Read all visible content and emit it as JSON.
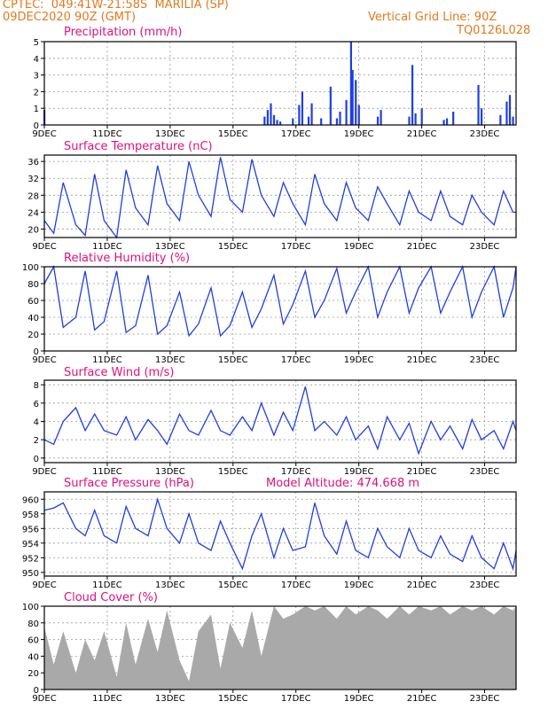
{
  "header": {
    "line1_left": "CPTEC:  049:41W-21:58S  MARILIA (SP)",
    "line2_left": "09DEC2020 90Z (GMT)",
    "line1_right": "Vertical Grid Line: 90Z",
    "line2_right": "TQ0126L028",
    "title_color": "#e07a1e",
    "panel_title_color": "#e0107a",
    "line_color": "#1f3fe0",
    "fill_color": "#a9a9a9"
  },
  "x_ticks": [
    "9DEC",
    "11DEC",
    "13DEC",
    "15DEC",
    "17DEC",
    "19DEC",
    "21DEC",
    "23DEC"
  ],
  "x_tick_days": [
    9,
    11,
    13,
    15,
    17,
    19,
    21,
    23
  ],
  "x_range_days": [
    9,
    24
  ],
  "chart_data": [
    {
      "type": "bar",
      "title": "Precipitation (mm/h)",
      "ylim": [
        0,
        5
      ],
      "yticks": [
        0,
        1,
        2,
        3,
        4,
        5
      ],
      "x_days": [
        9.0,
        16.0,
        16.1,
        16.2,
        16.3,
        16.4,
        16.5,
        16.9,
        17.1,
        17.2,
        17.4,
        17.5,
        17.8,
        18.1,
        18.3,
        18.4,
        18.6,
        18.75,
        18.8,
        18.9,
        19.0,
        19.6,
        19.7,
        20.6,
        20.7,
        20.8,
        21.0,
        21.7,
        21.8,
        22.0,
        22.8,
        22.9,
        23.5,
        23.7,
        23.8,
        23.9
      ],
      "values": [
        0.9,
        0.5,
        0.9,
        1.3,
        0.6,
        0.3,
        0.2,
        0.4,
        1.2,
        2.0,
        0.5,
        1.3,
        0.4,
        2.3,
        0.4,
        0.8,
        1.5,
        5.0,
        3.3,
        2.7,
        1.2,
        0.5,
        0.9,
        0.5,
        3.6,
        0.7,
        1.0,
        0.3,
        0.4,
        0.8,
        2.4,
        1.0,
        0.6,
        1.4,
        1.8,
        0.5
      ]
    },
    {
      "type": "line",
      "title": "Surface Temperature (nC)",
      "ylim": [
        18,
        37.5
      ],
      "yticks": [
        20,
        24,
        28,
        32,
        36
      ],
      "x_days": [
        9.0,
        9.3,
        9.6,
        10.0,
        10.3,
        10.6,
        10.9,
        11.3,
        11.6,
        11.9,
        12.3,
        12.6,
        12.9,
        13.3,
        13.6,
        13.9,
        14.3,
        14.6,
        14.9,
        15.3,
        15.6,
        15.9,
        16.3,
        16.6,
        16.9,
        17.3,
        17.6,
        17.9,
        18.3,
        18.6,
        18.9,
        19.3,
        19.6,
        19.9,
        20.3,
        20.6,
        20.9,
        21.3,
        21.6,
        21.9,
        22.3,
        22.6,
        22.9,
        23.3,
        23.6,
        23.9,
        24.0
      ],
      "values": [
        22,
        19,
        31,
        21,
        18.5,
        33,
        22,
        18,
        34,
        25,
        21,
        35,
        26,
        22,
        36,
        28,
        23,
        37,
        27,
        24,
        36.5,
        28,
        23,
        31,
        26,
        21,
        33,
        26,
        22,
        31,
        25,
        22,
        30,
        26,
        21,
        29,
        24,
        22,
        29,
        23,
        21,
        28,
        24,
        21,
        29,
        24,
        24
      ]
    },
    {
      "type": "line",
      "title": "Relative Humidity (%)",
      "ylim": [
        0,
        100
      ],
      "yticks": [
        0,
        20,
        40,
        60,
        80,
        100
      ],
      "x_days": [
        9.0,
        9.3,
        9.6,
        10.0,
        10.3,
        10.6,
        10.9,
        11.3,
        11.6,
        11.9,
        12.3,
        12.6,
        12.9,
        13.3,
        13.6,
        13.9,
        14.3,
        14.6,
        14.9,
        15.3,
        15.6,
        15.9,
        16.3,
        16.6,
        16.9,
        17.3,
        17.6,
        17.9,
        18.3,
        18.6,
        18.9,
        19.3,
        19.6,
        19.9,
        20.3,
        20.6,
        20.9,
        21.3,
        21.6,
        21.9,
        22.3,
        22.6,
        22.9,
        23.3,
        23.6,
        23.9,
        24.0
      ],
      "values": [
        80,
        100,
        28,
        40,
        95,
        25,
        35,
        95,
        22,
        30,
        90,
        20,
        30,
        70,
        18,
        32,
        75,
        18,
        30,
        70,
        28,
        50,
        90,
        32,
        55,
        95,
        40,
        60,
        98,
        45,
        70,
        100,
        40,
        70,
        100,
        45,
        75,
        100,
        45,
        70,
        100,
        40,
        70,
        100,
        40,
        75,
        100
      ]
    },
    {
      "type": "line",
      "title": "Surface Wind (m/s)",
      "ylim": [
        -0.5,
        8.5
      ],
      "yticks": [
        0,
        2,
        4,
        6,
        8
      ],
      "x_days": [
        9.0,
        9.3,
        9.6,
        10.0,
        10.3,
        10.6,
        10.9,
        11.3,
        11.6,
        11.9,
        12.3,
        12.6,
        12.9,
        13.3,
        13.6,
        13.9,
        14.3,
        14.6,
        14.9,
        15.3,
        15.6,
        15.9,
        16.3,
        16.6,
        16.9,
        17.3,
        17.6,
        17.9,
        18.3,
        18.6,
        18.9,
        19.3,
        19.6,
        19.9,
        20.3,
        20.6,
        20.9,
        21.3,
        21.6,
        21.9,
        22.3,
        22.6,
        22.9,
        23.3,
        23.6,
        23.9,
        24.0
      ],
      "values": [
        2,
        1.5,
        4,
        5.5,
        3,
        4.8,
        3,
        2.5,
        4.5,
        2,
        4.2,
        3,
        1.5,
        4.8,
        3,
        2.5,
        5.2,
        3,
        2.5,
        4.5,
        3,
        6,
        2.5,
        5,
        3,
        7.8,
        3,
        4,
        2.5,
        4.5,
        2,
        3.5,
        1,
        4.5,
        2,
        3.8,
        0.5,
        4,
        2,
        3.5,
        1,
        4.2,
        2,
        3,
        1,
        4,
        3
      ]
    },
    {
      "type": "line",
      "title": "Surface Pressure (hPa)",
      "annotation": "Model Altitude: 474.668 m",
      "ylim": [
        949.5,
        961
      ],
      "yticks": [
        950,
        952,
        954,
        956,
        958,
        960
      ],
      "x_days": [
        9.0,
        9.3,
        9.6,
        10.0,
        10.3,
        10.6,
        10.9,
        11.3,
        11.6,
        11.9,
        12.3,
        12.6,
        12.9,
        13.3,
        13.6,
        13.9,
        14.3,
        14.6,
        14.9,
        15.3,
        15.6,
        15.9,
        16.3,
        16.6,
        16.9,
        17.3,
        17.6,
        17.9,
        18.3,
        18.6,
        18.9,
        19.3,
        19.6,
        19.9,
        20.3,
        20.6,
        20.9,
        21.3,
        21.6,
        21.9,
        22.3,
        22.6,
        22.9,
        23.3,
        23.6,
        23.9,
        24.0
      ],
      "values": [
        958.5,
        958.8,
        959.5,
        956,
        955,
        958.5,
        955,
        954,
        959,
        956,
        955,
        960,
        956,
        954,
        958,
        954,
        953,
        957,
        954,
        950.5,
        955,
        958,
        952,
        956,
        953,
        953.5,
        959.5,
        955,
        952.5,
        957,
        953,
        952,
        956,
        953.5,
        952,
        956,
        953,
        952,
        955,
        952.5,
        951.5,
        955,
        952,
        950.5,
        954,
        950.5,
        953
      ]
    },
    {
      "type": "area",
      "title": "Cloud Cover (%)",
      "ylim": [
        0,
        100
      ],
      "yticks": [
        0,
        20,
        40,
        60,
        80,
        100
      ],
      "x_days": [
        9.0,
        9.3,
        9.6,
        10.0,
        10.3,
        10.6,
        10.9,
        11.3,
        11.6,
        11.9,
        12.3,
        12.6,
        12.9,
        13.3,
        13.6,
        13.9,
        14.3,
        14.6,
        14.9,
        15.3,
        15.6,
        15.9,
        16.3,
        16.6,
        16.9,
        17.3,
        17.6,
        17.9,
        18.3,
        18.6,
        18.9,
        19.3,
        19.6,
        19.9,
        20.3,
        20.6,
        20.9,
        21.3,
        21.6,
        21.9,
        22.3,
        22.6,
        22.9,
        23.3,
        23.6,
        23.9,
        24.0
      ],
      "values": [
        75,
        30,
        70,
        20,
        60,
        35,
        70,
        15,
        80,
        30,
        85,
        45,
        95,
        35,
        10,
        70,
        90,
        25,
        80,
        50,
        95,
        40,
        100,
        85,
        90,
        100,
        95,
        100,
        85,
        100,
        90,
        100,
        95,
        85,
        100,
        90,
        100,
        95,
        100,
        90,
        100,
        95,
        100,
        90,
        100,
        95,
        100
      ]
    }
  ]
}
